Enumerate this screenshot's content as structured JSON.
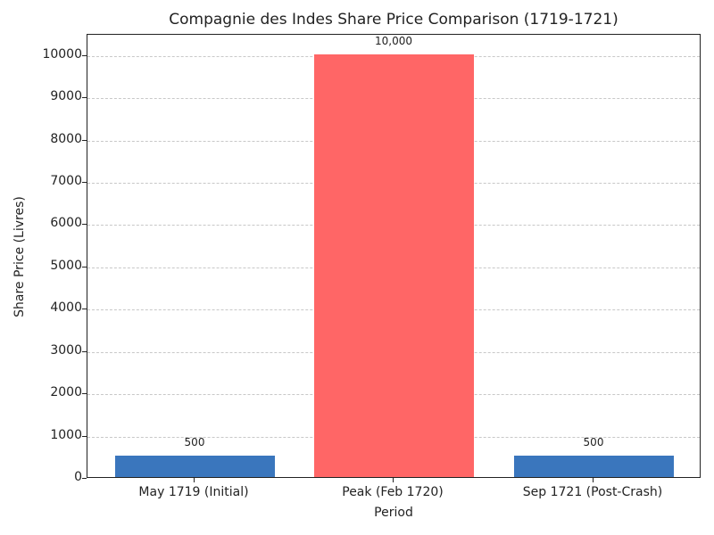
{
  "chart_data": {
    "type": "bar",
    "title": "Compagnie des Indes Share Price Comparison (1719-1721)",
    "xlabel": "Period",
    "ylabel": "Share Price (Livres)",
    "categories": [
      "May 1719 (Initial)",
      "Peak (Feb 1720)",
      "Sep 1721 (Post-Crash)"
    ],
    "values": [
      500,
      10000,
      500
    ],
    "value_labels": [
      "500",
      "10,000",
      "500"
    ],
    "colors": [
      "#3a76bd",
      "#ff6666",
      "#3a76bd"
    ],
    "ylim": [
      0,
      10500
    ],
    "yticks": [
      0,
      1000,
      2000,
      3000,
      4000,
      5000,
      6000,
      7000,
      8000,
      9000,
      10000
    ],
    "grid": "y-dashed",
    "legend": null
  }
}
